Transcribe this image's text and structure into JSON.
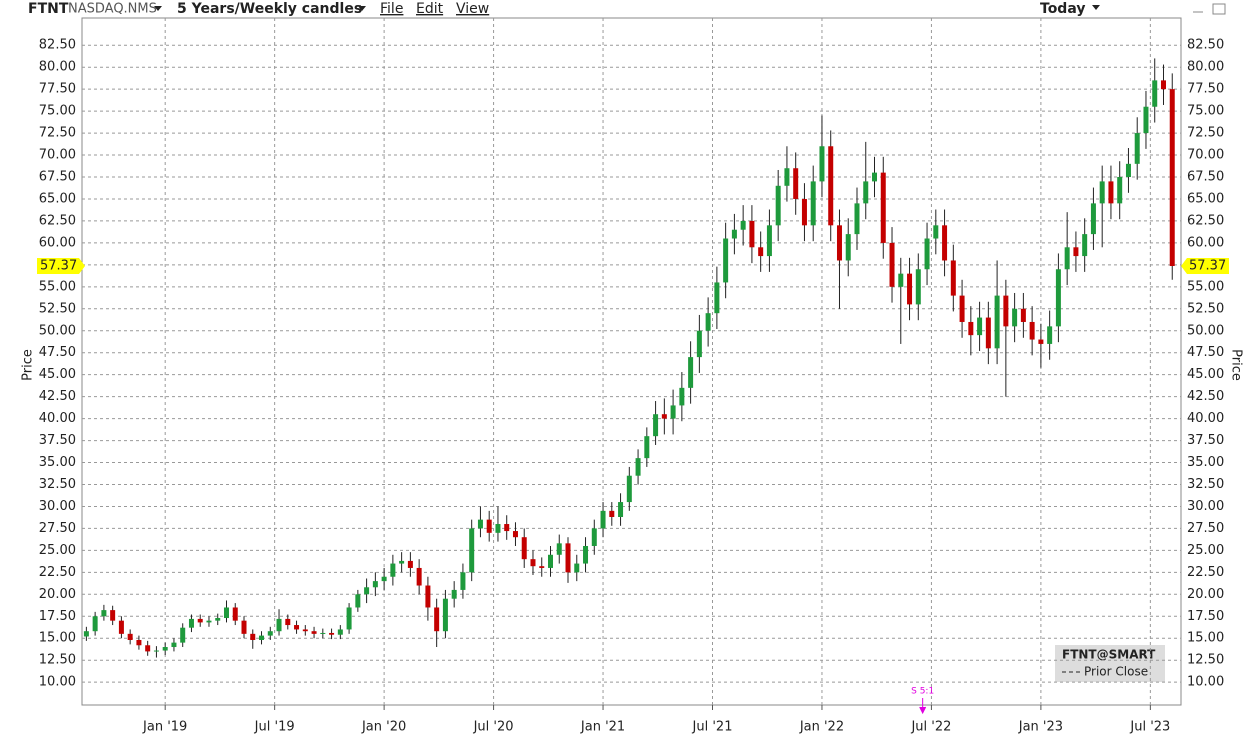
{
  "toolbar": {
    "symbol": "FTNT",
    "exchange": "NASDAQ.NMS",
    "period": "5 Years/Weekly candles",
    "menus": [
      "File",
      "Edit",
      "View"
    ],
    "range": "Today"
  },
  "chart_data": {
    "type": "candlestick",
    "y_label": "Price",
    "grid": true,
    "xlim": [
      2018.62,
      2023.64
    ],
    "ylim": [
      7.4,
      85.6
    ],
    "xticks": [
      {
        "value": 2019.0,
        "label": "Jan '19"
      },
      {
        "value": 2019.5,
        "label": "Jul '19"
      },
      {
        "value": 2020.0,
        "label": "Jan '20"
      },
      {
        "value": 2020.5,
        "label": "Jul '20"
      },
      {
        "value": 2021.0,
        "label": "Jan '21"
      },
      {
        "value": 2021.5,
        "label": "Jul '21"
      },
      {
        "value": 2022.0,
        "label": "Jan '22"
      },
      {
        "value": 2022.5,
        "label": "Jul '22"
      },
      {
        "value": 2023.0,
        "label": "Jan '23"
      },
      {
        "value": 2023.5,
        "label": "Jul '23"
      }
    ],
    "yticks": [
      {
        "value": 10,
        "label": "10.00"
      },
      {
        "value": 12.5,
        "label": "12.50"
      },
      {
        "value": 15,
        "label": "15.00"
      },
      {
        "value": 17.5,
        "label": "17.50"
      },
      {
        "value": 20,
        "label": "20.00"
      },
      {
        "value": 22.5,
        "label": "22.50"
      },
      {
        "value": 25,
        "label": "25.00"
      },
      {
        "value": 27.5,
        "label": "27.50"
      },
      {
        "value": 30,
        "label": "30.00"
      },
      {
        "value": 32.5,
        "label": "32.50"
      },
      {
        "value": 35,
        "label": "35.00"
      },
      {
        "value": 37.5,
        "label": "37.50"
      },
      {
        "value": 40,
        "label": "40.00"
      },
      {
        "value": 42.5,
        "label": "42.50"
      },
      {
        "value": 45,
        "label": "45.00"
      },
      {
        "value": 47.5,
        "label": "47.50"
      },
      {
        "value": 50,
        "label": "50.00"
      },
      {
        "value": 52.5,
        "label": "52.50"
      },
      {
        "value": 55,
        "label": "55.00"
      },
      {
        "value": 57.5,
        "label": "57.50"
      },
      {
        "value": 60,
        "label": "60.00"
      },
      {
        "value": 62.5,
        "label": "62.50"
      },
      {
        "value": 65,
        "label": "65.00"
      },
      {
        "value": 67.5,
        "label": "67.50"
      },
      {
        "value": 70,
        "label": "70.00"
      },
      {
        "value": 72.5,
        "label": "72.50"
      },
      {
        "value": 75,
        "label": "75.00"
      },
      {
        "value": 77.5,
        "label": "77.50"
      },
      {
        "value": 80,
        "label": "80.00"
      },
      {
        "value": 82.5,
        "label": "82.50"
      }
    ],
    "annotations": [
      {
        "text": "S 5:1",
        "x": 2022.46
      }
    ],
    "legend_extra": "Prior Close",
    "series": [
      {
        "name": "FTNT@SMART",
        "color_up": "#1e9a3c",
        "color_down": "#c40000",
        "x": [
          2018.64,
          2018.68,
          2018.72,
          2018.76,
          2018.8,
          2018.84,
          2018.88,
          2018.92,
          2018.96,
          2019.0,
          2019.04,
          2019.08,
          2019.12,
          2019.16,
          2019.2,
          2019.24,
          2019.28,
          2019.32,
          2019.36,
          2019.4,
          2019.44,
          2019.48,
          2019.52,
          2019.56,
          2019.6,
          2019.64,
          2019.68,
          2019.72,
          2019.76,
          2019.8,
          2019.84,
          2019.88,
          2019.92,
          2019.96,
          2020.0,
          2020.04,
          2020.08,
          2020.12,
          2020.16,
          2020.2,
          2020.24,
          2020.28,
          2020.32,
          2020.36,
          2020.4,
          2020.44,
          2020.48,
          2020.52,
          2020.56,
          2020.6,
          2020.64,
          2020.68,
          2020.72,
          2020.76,
          2020.8,
          2020.84,
          2020.88,
          2020.92,
          2020.96,
          2021.0,
          2021.04,
          2021.08,
          2021.12,
          2021.16,
          2021.2,
          2021.24,
          2021.28,
          2021.32,
          2021.36,
          2021.4,
          2021.44,
          2021.48,
          2021.52,
          2021.56,
          2021.6,
          2021.64,
          2021.68,
          2021.72,
          2021.76,
          2021.8,
          2021.84,
          2021.88,
          2021.92,
          2021.96,
          2022.0,
          2022.04,
          2022.08,
          2022.12,
          2022.16,
          2022.2,
          2022.24,
          2022.28,
          2022.32,
          2022.36,
          2022.4,
          2022.44,
          2022.48,
          2022.52,
          2022.56,
          2022.6,
          2022.64,
          2022.68,
          2022.72,
          2022.76,
          2022.8,
          2022.84,
          2022.88,
          2022.92,
          2022.96,
          2023.0,
          2023.04,
          2023.08,
          2023.12,
          2023.16,
          2023.2,
          2023.24,
          2023.28,
          2023.32,
          2023.36,
          2023.4,
          2023.44,
          2023.48,
          2023.52,
          2023.56,
          2023.6
        ],
        "open": [
          15.2,
          15.8,
          17.5,
          18.2,
          17.0,
          15.5,
          14.8,
          14.2,
          13.5,
          13.6,
          14.0,
          14.5,
          16.2,
          17.2,
          16.8,
          17.0,
          17.3,
          18.5,
          17.0,
          15.5,
          14.8,
          15.3,
          15.8,
          17.2,
          16.5,
          16.0,
          15.8,
          15.5,
          15.6,
          15.4,
          16.0,
          18.5,
          20.0,
          20.8,
          21.5,
          22.0,
          23.5,
          23.8,
          23.0,
          21.0,
          18.5,
          15.8,
          19.5,
          20.5,
          22.5,
          27.5,
          28.5,
          27.0,
          28.0,
          27.2,
          26.5,
          24.0,
          23.2,
          23.0,
          24.5,
          25.8,
          22.5,
          23.5,
          25.5,
          27.5,
          29.5,
          28.8,
          30.5,
          33.5,
          35.5,
          38.0,
          40.5,
          40.0,
          41.5,
          43.5,
          47.0,
          50.0,
          52.0,
          55.5,
          60.5,
          61.5,
          62.5,
          59.5,
          58.5,
          62.0,
          66.5,
          68.5,
          65.0,
          62.0,
          67.0,
          71.0,
          62.0,
          58.0,
          61.0,
          64.5,
          67.0,
          68.0,
          60.0,
          55.0,
          56.5,
          53.0,
          57.0,
          60.5,
          62.0,
          58.0,
          54.0,
          51.0,
          49.5,
          51.5,
          48.0,
          54.0,
          50.5,
          52.5,
          51.0,
          49.0,
          48.5,
          50.5,
          57.0,
          59.5,
          58.5,
          61.0,
          64.5,
          67.0,
          64.5,
          67.5,
          69.0,
          72.5,
          75.5,
          78.5,
          77.5
        ],
        "high": [
          16.3,
          18.0,
          18.8,
          18.7,
          17.5,
          16.0,
          15.3,
          14.7,
          14.1,
          14.5,
          15.0,
          16.7,
          17.7,
          17.7,
          17.5,
          17.8,
          19.3,
          19.0,
          17.5,
          16.0,
          15.8,
          16.3,
          18.3,
          17.7,
          17.0,
          16.5,
          16.3,
          16.1,
          16.1,
          16.5,
          19.0,
          20.5,
          21.8,
          22.5,
          23.0,
          24.5,
          24.8,
          24.8,
          24.0,
          22.0,
          19.5,
          20.5,
          21.5,
          23.5,
          28.5,
          30.0,
          29.5,
          30.0,
          29.0,
          28.2,
          27.5,
          25.0,
          24.2,
          25.5,
          26.8,
          26.5,
          24.5,
          26.5,
          28.5,
          30.5,
          30.5,
          31.5,
          34.5,
          36.5,
          39.0,
          42.0,
          42.3,
          43.3,
          45.3,
          48.8,
          51.8,
          53.8,
          57.3,
          62.3,
          63.3,
          64.3,
          64.3,
          61.3,
          63.8,
          68.3,
          71.0,
          70.3,
          66.8,
          68.8,
          74.5,
          72.8,
          63.8,
          62.8,
          66.3,
          71.5,
          69.8,
          69.8,
          61.8,
          58.3,
          58.3,
          58.8,
          62.3,
          63.8,
          63.8,
          59.8,
          55.8,
          52.8,
          53.3,
          53.3,
          58.0,
          55.8,
          54.3,
          54.3,
          52.8,
          50.8,
          52.3,
          58.8,
          63.5,
          61.3,
          62.8,
          66.3,
          68.8,
          68.8,
          69.3,
          70.8,
          74.3,
          77.3,
          81.0,
          80.3,
          79.3
        ],
        "low": [
          14.7,
          15.3,
          17.0,
          16.5,
          15.0,
          14.3,
          13.7,
          13.0,
          12.8,
          13.1,
          13.5,
          14.0,
          15.7,
          16.3,
          16.3,
          16.5,
          16.8,
          16.5,
          15.0,
          13.8,
          14.3,
          14.8,
          15.3,
          16.0,
          15.5,
          15.3,
          15.0,
          15.0,
          14.9,
          14.9,
          15.5,
          18.0,
          19.0,
          19.8,
          20.5,
          21.0,
          22.5,
          22.0,
          20.0,
          17.0,
          14.0,
          15.0,
          18.5,
          19.5,
          21.5,
          26.5,
          26.0,
          26.0,
          26.2,
          25.5,
          23.0,
          22.2,
          22.0,
          22.0,
          23.5,
          21.3,
          21.5,
          22.5,
          24.5,
          26.5,
          27.8,
          27.8,
          29.5,
          32.5,
          34.5,
          37.0,
          38.2,
          38.2,
          39.7,
          41.7,
          45.2,
          48.2,
          50.2,
          53.7,
          58.7,
          59.7,
          57.7,
          56.7,
          56.7,
          60.2,
          64.7,
          63.2,
          60.2,
          60.2,
          65.2,
          60.2,
          52.5,
          56.2,
          59.2,
          62.7,
          65.2,
          58.2,
          53.2,
          48.5,
          51.2,
          51.2,
          55.2,
          58.7,
          56.2,
          52.2,
          49.2,
          47.2,
          47.7,
          46.2,
          46.2,
          42.5,
          48.7,
          49.2,
          47.2,
          45.8,
          46.7,
          48.7,
          55.2,
          56.7,
          56.7,
          59.2,
          59.5,
          62.7,
          62.7,
          65.7,
          67.2,
          70.7,
          73.7,
          75.7,
          55.8
        ],
        "close": [
          15.8,
          17.5,
          18.2,
          17.0,
          15.5,
          14.8,
          14.2,
          13.5,
          13.6,
          14.0,
          14.5,
          16.2,
          17.2,
          16.8,
          17.0,
          17.3,
          18.5,
          17.0,
          15.5,
          14.8,
          15.3,
          15.8,
          17.2,
          16.5,
          16.0,
          15.8,
          15.5,
          15.6,
          15.4,
          16.0,
          18.5,
          20.0,
          20.8,
          21.5,
          22.0,
          23.5,
          23.8,
          23.0,
          21.0,
          18.5,
          15.8,
          19.5,
          20.5,
          22.5,
          27.5,
          28.5,
          27.0,
          28.0,
          27.2,
          26.5,
          24.0,
          23.2,
          23.0,
          24.5,
          25.8,
          22.5,
          23.5,
          25.5,
          27.5,
          29.5,
          28.8,
          30.5,
          33.5,
          35.5,
          38.0,
          40.5,
          40.0,
          41.5,
          43.5,
          47.0,
          50.0,
          52.0,
          55.5,
          60.5,
          61.5,
          62.5,
          59.5,
          58.5,
          62.0,
          66.5,
          68.5,
          65.0,
          62.0,
          67.0,
          71.0,
          62.0,
          58.0,
          61.0,
          64.5,
          67.0,
          68.0,
          60.0,
          55.0,
          56.5,
          53.0,
          57.0,
          60.5,
          62.0,
          58.0,
          54.0,
          51.0,
          49.5,
          51.5,
          48.0,
          54.0,
          50.5,
          52.5,
          51.0,
          49.0,
          48.5,
          50.5,
          57.0,
          59.5,
          58.5,
          61.0,
          64.5,
          67.0,
          64.5,
          67.5,
          69.0,
          72.5,
          75.5,
          78.5,
          77.5,
          57.37
        ]
      }
    ]
  }
}
